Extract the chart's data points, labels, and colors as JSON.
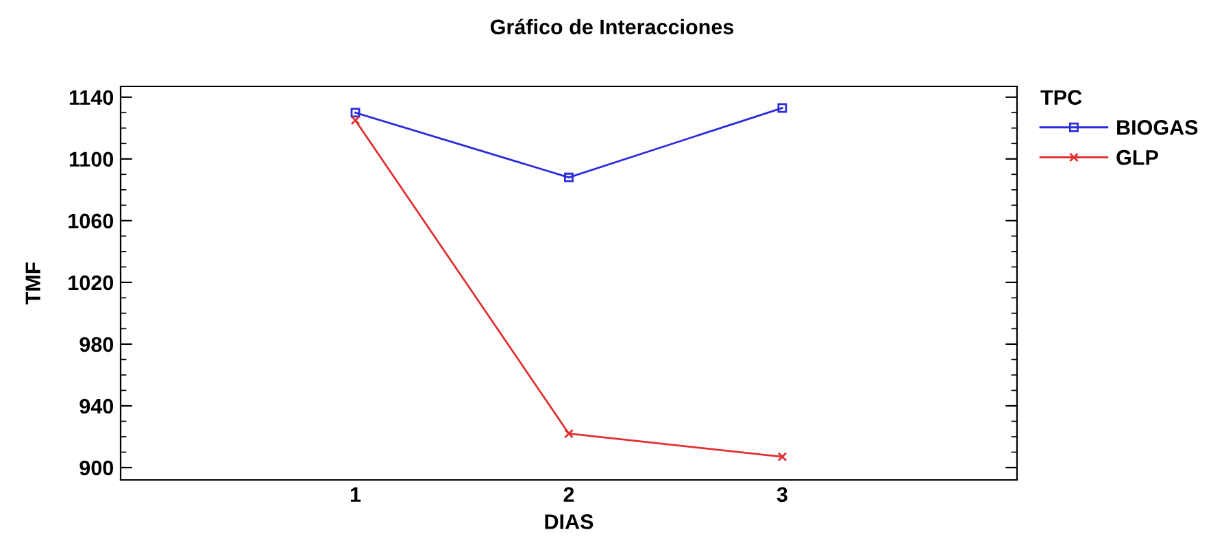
{
  "chart_data": {
    "type": "line",
    "title": "Gráfico de Interacciones",
    "xlabel": "DIAS",
    "ylabel": "TMF",
    "legend_title": "TPC",
    "x": [
      1,
      2,
      3
    ],
    "xlim": [
      -0.1,
      4.1
    ],
    "xticks": [
      1,
      2,
      3
    ],
    "ylim": [
      892,
      1147
    ],
    "yticks": [
      900,
      940,
      980,
      1020,
      1060,
      1100,
      1140
    ],
    "series": [
      {
        "name": "BIOGAS",
        "color": "#2b2bdc",
        "marker": "square",
        "values": [
          1130,
          1088,
          1133
        ]
      },
      {
        "name": "GLP",
        "color": "#e03030",
        "marker": "cross",
        "values": [
          1125,
          922,
          907
        ]
      }
    ],
    "legend": "top right",
    "grid": false,
    "line_style": "solid"
  }
}
